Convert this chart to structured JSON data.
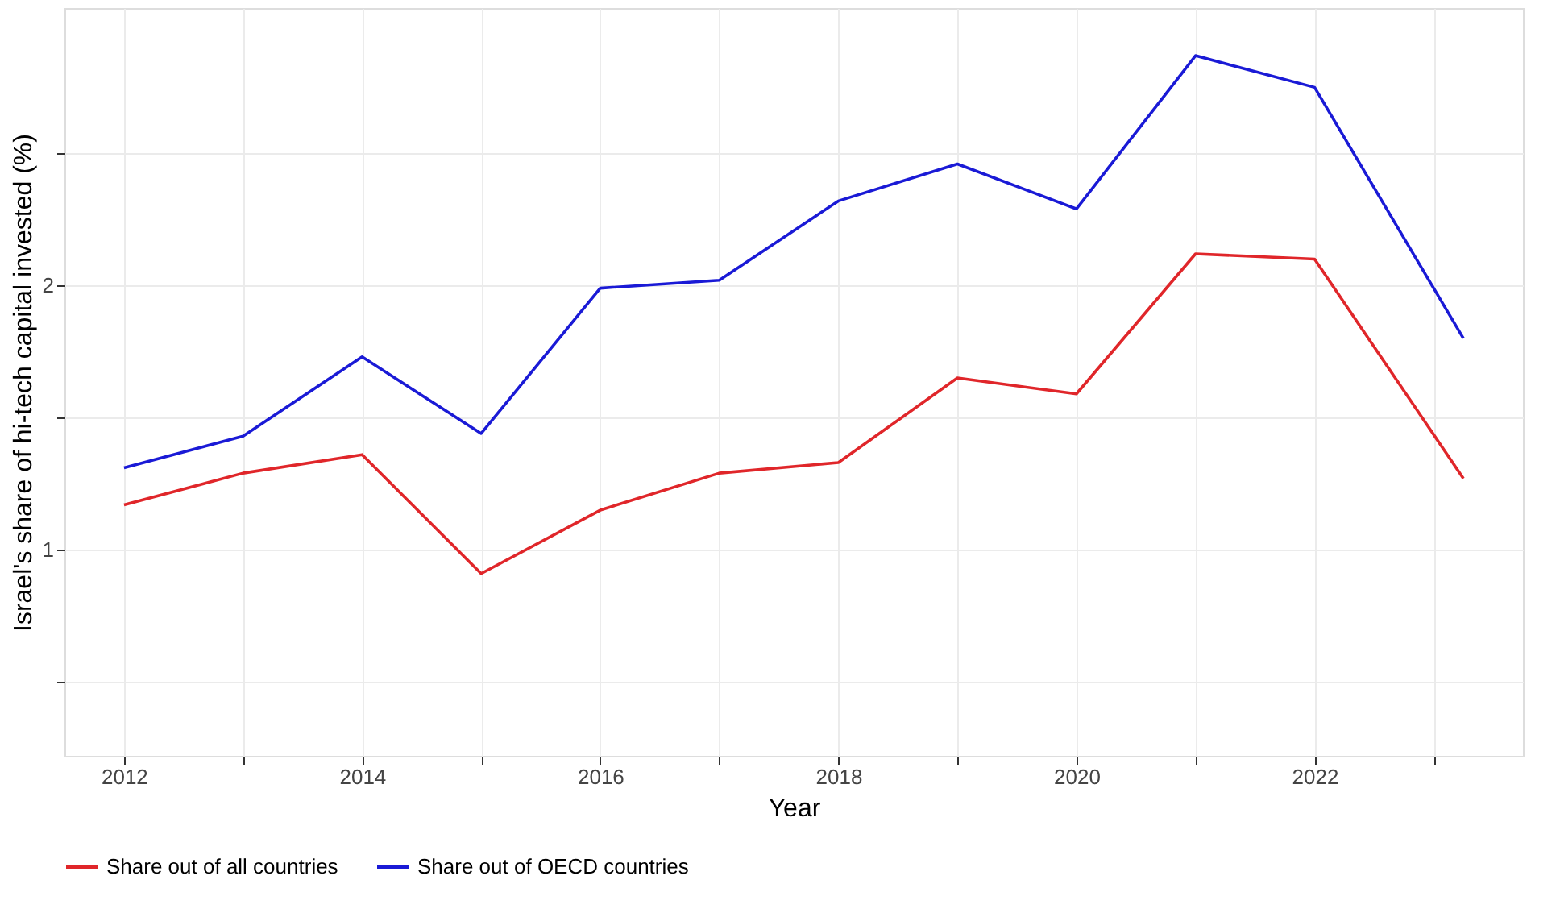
{
  "chart_data": {
    "type": "line",
    "xlabel": "Year",
    "ylabel": "Israel's share of hi-tech capital invested (%)",
    "x": [
      2012,
      2013,
      2014,
      2015,
      2016,
      2017,
      2018,
      2019,
      2020,
      2021,
      2022,
      2023.25
    ],
    "series": [
      {
        "name": "Share out of all countries",
        "color": "#e0262a",
        "values": [
          1.17,
          1.29,
          1.36,
          0.91,
          1.15,
          1.29,
          1.33,
          1.65,
          1.59,
          2.12,
          2.1,
          1.27
        ]
      },
      {
        "name": "Share out of OECD countries",
        "color": "#1a1ad6",
        "values": [
          1.31,
          1.43,
          1.73,
          1.44,
          1.99,
          2.02,
          2.32,
          2.46,
          2.29,
          2.87,
          2.75,
          1.8
        ]
      }
    ],
    "xlim": [
      2011.5,
      2023.75
    ],
    "ylim": [
      0.22,
      3.05
    ],
    "xticks": [
      2012,
      {
        "value": 2013,
        "label": null
      },
      2014,
      {
        "value": 2015,
        "label": null
      },
      2016,
      {
        "value": 2017,
        "label": null
      },
      2018,
      {
        "value": 2019,
        "label": null
      },
      2020,
      {
        "value": 2021,
        "label": null
      },
      2022,
      {
        "value": 2023,
        "label": null
      }
    ],
    "yticks": [
      {
        "value": 0.5,
        "label": null
      },
      1,
      {
        "value": 1.5,
        "label": null
      },
      2,
      {
        "value": 2.5,
        "label": null
      }
    ],
    "grid": true,
    "legend": "bottom",
    "marker": "none",
    "line_style": "solid"
  }
}
